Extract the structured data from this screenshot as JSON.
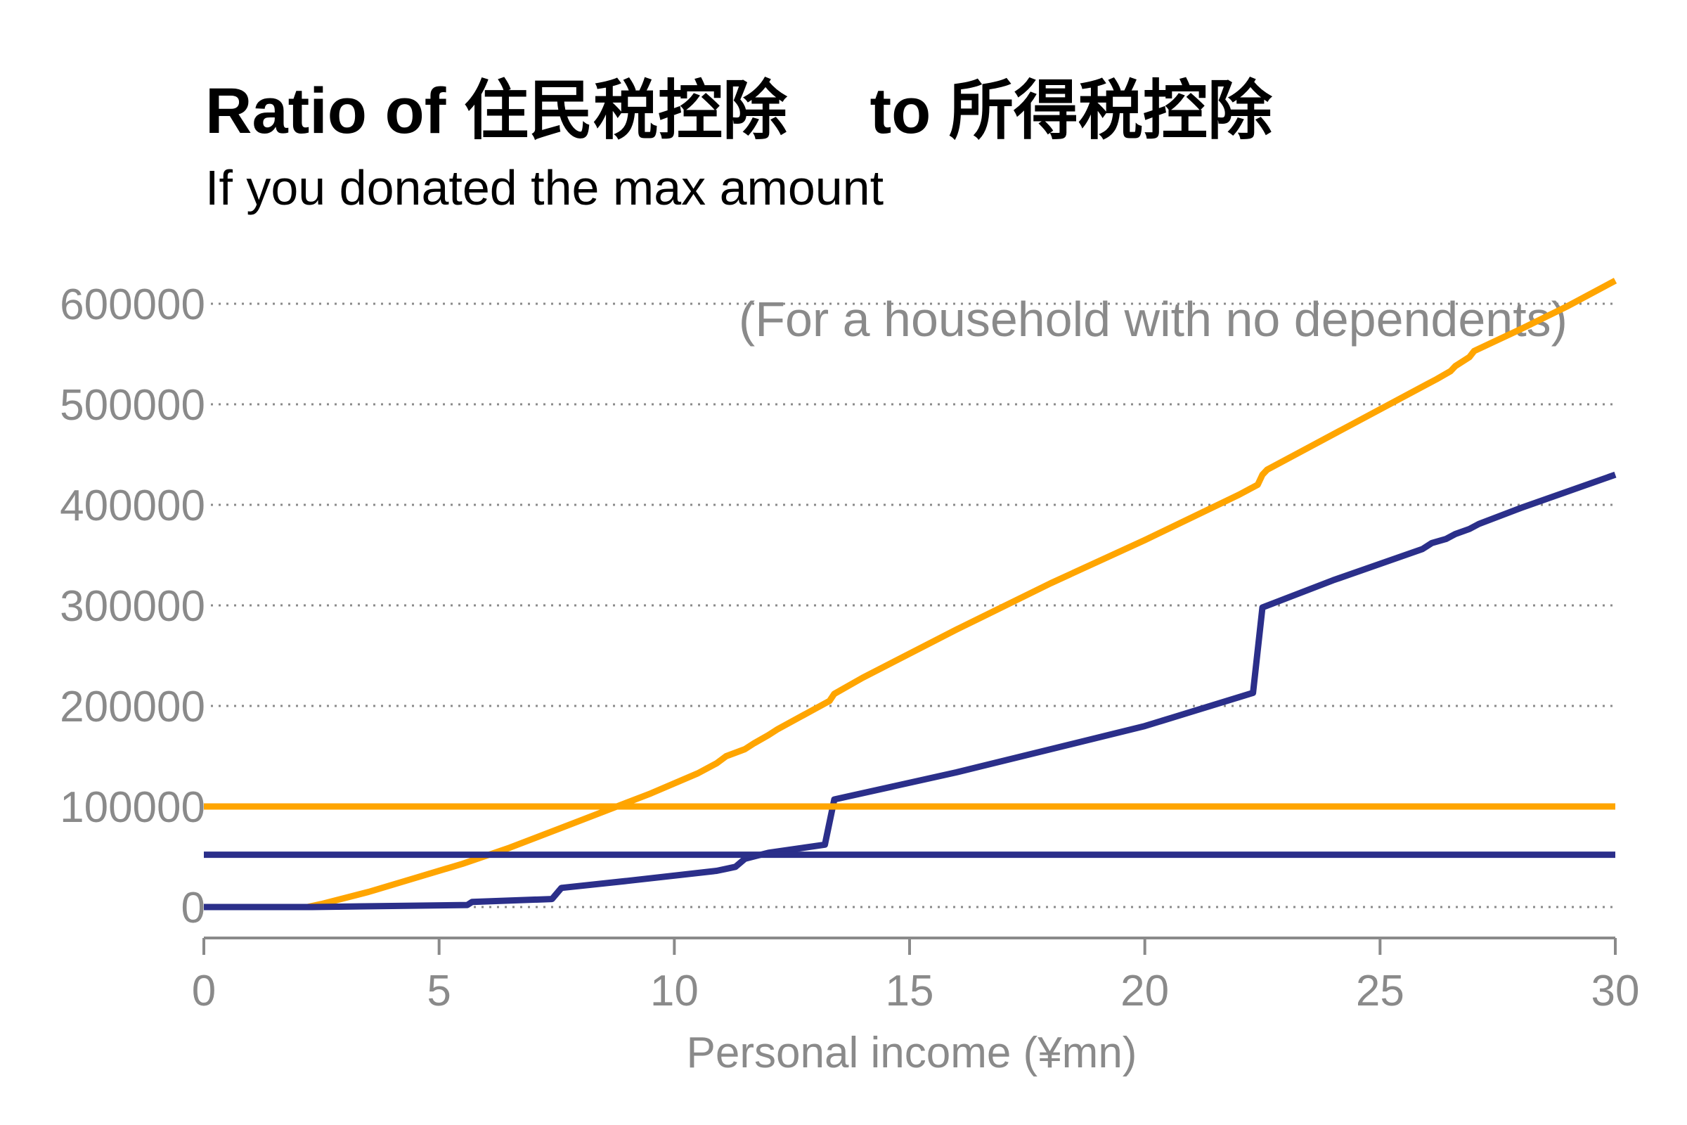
{
  "chart_data": {
    "type": "line",
    "title": "Ratio of 住民税控除　 to 所得税控除",
    "subtitle": "If you donated the max amount",
    "annotation": "(For a household with no dependents)",
    "xlabel": "Personal income (¥mn)",
    "ylabel": "",
    "xlim": [
      0,
      30
    ],
    "ylim": [
      0,
      600000
    ],
    "x_ticks": [
      0,
      5,
      10,
      15,
      20,
      25,
      30
    ],
    "y_ticks": [
      0,
      100000,
      200000,
      300000,
      400000,
      500000,
      600000
    ],
    "grid": "horizontal-dotted",
    "series": [
      {
        "color": "#FFA500",
        "x": [
          0,
          2.2,
          2.5,
          3.5,
          4.5,
          5.5,
          6.5,
          7.5,
          8.5,
          9.5,
          10.5,
          10.9,
          11.1,
          11.5,
          11.7,
          12.0,
          12.2,
          13.3,
          13.4,
          14.0,
          16.0,
          18.0,
          20.0,
          22.0,
          22.4,
          22.5,
          22.6,
          24.0,
          26.0,
          26.2,
          26.5,
          26.6,
          26.9,
          27.0,
          28.0,
          29.0,
          30.0
        ],
        "y": [
          0,
          0,
          3000,
          15000,
          29000,
          43000,
          59000,
          77000,
          95000,
          113000,
          133000,
          143000,
          150000,
          157000,
          163000,
          171000,
          177000,
          205000,
          212000,
          228000,
          276000,
          322000,
          365000,
          410000,
          420000,
          430000,
          435000,
          470000,
          520000,
          525000,
          533000,
          538000,
          547000,
          553000,
          575000,
          598000,
          623000
        ]
      },
      {
        "color": "#2B2F8A",
        "x": [
          0,
          2.3,
          5.6,
          5.7,
          7.4,
          7.6,
          9.0,
          10.9,
          11.1,
          11.3,
          11.5,
          12.0,
          13.2,
          13.4,
          16.0,
          20.0,
          22.3,
          22.5,
          24.0,
          25.9,
          26.1,
          26.4,
          26.6,
          26.9,
          27.1,
          28.0,
          30.0
        ],
        "y": [
          0,
          0,
          2000,
          5000,
          8000,
          19000,
          26000,
          36000,
          38000,
          40000,
          48000,
          54000,
          62000,
          107000,
          134000,
          180000,
          213000,
          298000,
          325000,
          356000,
          362000,
          366000,
          371000,
          376000,
          381000,
          397000,
          430000
        ]
      },
      {
        "color": "#FFA500",
        "x": [
          0,
          30
        ],
        "y": [
          100000,
          100000
        ]
      },
      {
        "color": "#2B2F8A",
        "x": [
          0,
          30
        ],
        "y": [
          52000,
          52000
        ]
      }
    ]
  }
}
